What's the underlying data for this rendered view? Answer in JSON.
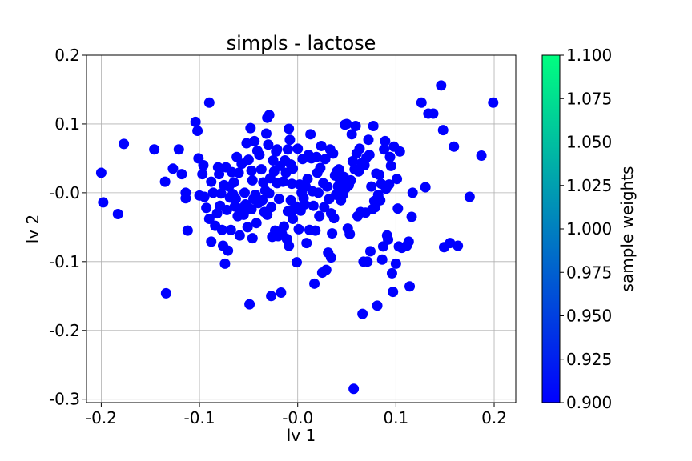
{
  "chart_data": {
    "type": "scatter",
    "title": "simpls - lactose",
    "xlabel": "lv 1",
    "ylabel": "lv 2",
    "xlim": [
      -0.215,
      0.222
    ],
    "ylim": [
      -0.305,
      0.2
    ],
    "x_ticks": [
      -0.2,
      -0.1,
      0.0,
      0.1,
      0.2
    ],
    "x_tick_labels": [
      "-0.2",
      "-0.1",
      "-0.0",
      "0.1",
      "0.2"
    ],
    "y_ticks": [
      0.2,
      0.1,
      0.0,
      -0.1,
      -0.2,
      -0.3
    ],
    "y_tick_labels": [
      "0.2",
      "0.1",
      "-0.0",
      "-0.1",
      "-0.2",
      "-0.3"
    ],
    "grid": true,
    "marker_color": "#0000ff",
    "colorbar": {
      "label": "sample weights",
      "range": [
        0.9,
        1.1
      ],
      "color_low": "#0000ff",
      "color_high": "#00ff80",
      "ticks": [
        0.9,
        0.925,
        0.95,
        0.975,
        1.0,
        1.025,
        1.05,
        1.075,
        1.1
      ],
      "tick_labels": [
        "0.900",
        "0.925",
        "0.950",
        "0.975",
        "1.000",
        "1.025",
        "1.050",
        "1.075",
        "1.100"
      ]
    },
    "points": [
      [
        -0.2,
        0.029
      ],
      [
        -0.198,
        -0.014
      ],
      [
        -0.183,
        -0.031
      ],
      [
        -0.177,
        0.071
      ],
      [
        -0.146,
        0.063
      ],
      [
        -0.135,
        0.016
      ],
      [
        -0.134,
        -0.146
      ],
      [
        -0.127,
        0.035
      ],
      [
        -0.121,
        0.063
      ],
      [
        -0.118,
        0.027
      ],
      [
        -0.114,
        0.0
      ],
      [
        -0.114,
        -0.008
      ],
      [
        -0.112,
        -0.055
      ],
      [
        -0.104,
        0.103
      ],
      [
        -0.102,
        0.09
      ],
      [
        -0.101,
        0.05
      ],
      [
        -0.1,
        -0.004
      ],
      [
        -0.097,
        0.027
      ],
      [
        -0.096,
        0.04
      ],
      [
        -0.095,
        -0.006
      ],
      [
        -0.093,
        -0.022
      ],
      [
        -0.09,
        0.131
      ],
      [
        -0.09,
        -0.038
      ],
      [
        -0.088,
        0.016
      ],
      [
        -0.088,
        -0.071
      ],
      [
        -0.086,
        0.0
      ],
      [
        -0.084,
        -0.048
      ],
      [
        -0.082,
        -0.03
      ],
      [
        -0.081,
        0.037
      ],
      [
        -0.08,
        0.027
      ],
      [
        -0.079,
        -0.019
      ],
      [
        -0.078,
        -0.001
      ],
      [
        -0.077,
        -0.054
      ],
      [
        -0.076,
        -0.077
      ],
      [
        -0.075,
        0.011
      ],
      [
        -0.074,
        -0.103
      ],
      [
        -0.073,
        0.037
      ],
      [
        -0.072,
        -0.025
      ],
      [
        -0.071,
        -0.084
      ],
      [
        -0.07,
        0.009
      ],
      [
        -0.069,
        -0.007
      ],
      [
        -0.068,
        -0.054
      ],
      [
        -0.067,
        0.03
      ],
      [
        -0.066,
        -0.002
      ],
      [
        -0.065,
        0.015
      ],
      [
        -0.064,
        -0.02
      ],
      [
        -0.063,
        -0.009
      ],
      [
        -0.062,
        0.052
      ],
      [
        -0.061,
        -0.034
      ],
      [
        -0.06,
        0.029
      ],
      [
        -0.059,
        -0.062
      ],
      [
        -0.058,
        -0.023
      ],
      [
        -0.057,
        0.042
      ],
      [
        -0.056,
        -0.028
      ],
      [
        -0.055,
        -0.032
      ],
      [
        -0.054,
        0.0
      ],
      [
        -0.053,
        -0.017
      ],
      [
        -0.052,
        0.072
      ],
      [
        -0.051,
        -0.05
      ],
      [
        -0.05,
        0.048
      ],
      [
        -0.049,
        -0.162
      ],
      [
        -0.048,
        0.094
      ],
      [
        -0.047,
        0.032
      ],
      [
        -0.047,
        -0.024
      ],
      [
        -0.046,
        0.018
      ],
      [
        -0.046,
        -0.066
      ],
      [
        -0.045,
        -0.009
      ],
      [
        -0.044,
        0.075
      ],
      [
        -0.043,
        -0.003
      ],
      [
        -0.042,
        -0.044
      ],
      [
        -0.041,
        0.061
      ],
      [
        -0.04,
        -0.015
      ],
      [
        -0.039,
        0.055
      ],
      [
        -0.037,
        0.034
      ],
      [
        -0.036,
        -0.011
      ],
      [
        -0.035,
        0.015
      ],
      [
        -0.034,
        -0.028
      ],
      [
        -0.033,
        0.003
      ],
      [
        -0.032,
        0.086
      ],
      [
        -0.031,
        -0.032
      ],
      [
        -0.031,
        0.109
      ],
      [
        -0.03,
        0.07
      ],
      [
        -0.029,
        0.113
      ],
      [
        -0.029,
        -0.001
      ],
      [
        -0.028,
        0.021
      ],
      [
        -0.027,
        -0.15
      ],
      [
        -0.027,
        -0.021
      ],
      [
        -0.026,
        -0.064
      ],
      [
        -0.025,
        0.047
      ],
      [
        -0.024,
        0.031
      ],
      [
        -0.023,
        -0.055
      ],
      [
        -0.022,
        0.06
      ],
      [
        -0.021,
        0.063
      ],
      [
        -0.021,
        0.014
      ],
      [
        -0.02,
        -0.063
      ],
      [
        -0.019,
        -0.009
      ],
      [
        -0.018,
        0.039
      ],
      [
        -0.017,
        -0.145
      ],
      [
        -0.016,
        -0.06
      ],
      [
        -0.015,
        0.016
      ],
      [
        -0.014,
        -0.049
      ],
      [
        -0.013,
        0.047
      ],
      [
        -0.012,
        0.029
      ],
      [
        -0.011,
        -0.067
      ],
      [
        -0.01,
        -0.027
      ],
      [
        -0.01,
        0.063
      ],
      [
        -0.009,
        0.093
      ],
      [
        -0.009,
        -0.077
      ],
      [
        -0.008,
        0.077
      ],
      [
        -0.007,
        0.041
      ],
      [
        -0.007,
        -0.011
      ],
      [
        -0.006,
        0.013
      ],
      [
        -0.005,
        -0.038
      ],
      [
        -0.005,
        0.035
      ],
      [
        -0.004,
        -0.024
      ],
      [
        -0.002,
        -0.02
      ],
      [
        -0.001,
        -0.101
      ],
      [
        0.0,
        0.064
      ],
      [
        0.001,
        -0.053
      ],
      [
        0.002,
        0.012
      ],
      [
        0.003,
        -0.026
      ],
      [
        0.004,
        0.0
      ],
      [
        0.005,
        0.049
      ],
      [
        0.006,
        -0.008
      ],
      [
        0.007,
        -0.017
      ],
      [
        0.008,
        0.009
      ],
      [
        0.009,
        -0.073
      ],
      [
        0.01,
        0.02
      ],
      [
        0.011,
        0.055
      ],
      [
        0.012,
        -0.054
      ],
      [
        0.013,
        0.085
      ],
      [
        0.014,
        0.05
      ],
      [
        0.015,
        0.002
      ],
      [
        0.016,
        -0.019
      ],
      [
        0.017,
        -0.132
      ],
      [
        0.018,
        -0.055
      ],
      [
        0.019,
        0.052
      ],
      [
        0.02,
        0.029
      ],
      [
        0.021,
        0.0
      ],
      [
        0.022,
        -0.034
      ],
      [
        0.023,
        0.036
      ],
      [
        0.024,
        0.068
      ],
      [
        0.025,
        -0.116
      ],
      [
        0.026,
        0.014
      ],
      [
        0.027,
        -0.021
      ],
      [
        0.028,
        0.049
      ],
      [
        0.029,
        -0.112
      ],
      [
        0.03,
        0.009
      ],
      [
        0.031,
        -0.087
      ],
      [
        0.032,
        -0.009
      ],
      [
        0.033,
        0.063
      ],
      [
        0.034,
        -0.03
      ],
      [
        0.034,
        -0.094
      ],
      [
        0.035,
        -0.059
      ],
      [
        0.036,
        0.057
      ],
      [
        0.037,
        -0.037
      ],
      [
        0.038,
        0.025
      ],
      [
        0.039,
        -0.003
      ],
      [
        0.04,
        0.031
      ],
      [
        0.041,
        0.009
      ],
      [
        0.042,
        0.034
      ],
      [
        0.043,
        0.019
      ],
      [
        0.044,
        -0.011
      ],
      [
        0.045,
        0.017
      ],
      [
        0.046,
        -0.003
      ],
      [
        0.047,
        0.023
      ],
      [
        0.048,
        0.099
      ],
      [
        0.049,
        0.007
      ],
      [
        0.05,
        0.1
      ],
      [
        0.051,
        -0.052
      ],
      [
        0.052,
        0.011
      ],
      [
        0.053,
        -0.06
      ],
      [
        0.054,
        0.018
      ],
      [
        0.055,
        0.085
      ],
      [
        0.056,
        0.046
      ],
      [
        0.057,
        -0.285
      ],
      [
        0.058,
        0.034
      ],
      [
        0.059,
        0.097
      ],
      [
        0.06,
        0.057
      ],
      [
        0.061,
        -0.034
      ],
      [
        0.062,
        0.031
      ],
      [
        0.063,
        0.064
      ],
      [
        0.064,
        -0.028
      ],
      [
        0.065,
        0.043
      ],
      [
        0.066,
        -0.176
      ],
      [
        0.067,
        -0.1
      ],
      [
        0.068,
        0.04
      ],
      [
        0.069,
        -0.029
      ],
      [
        0.07,
        0.051
      ],
      [
        0.071,
        -0.1
      ],
      [
        0.072,
        0.077
      ],
      [
        0.073,
        0.055
      ],
      [
        0.074,
        -0.085
      ],
      [
        0.075,
        0.009
      ],
      [
        0.076,
        -0.024
      ],
      [
        0.077,
        0.097
      ],
      [
        0.078,
        -0.012
      ],
      [
        0.079,
        -0.021
      ],
      [
        0.08,
        0.028
      ],
      [
        0.081,
        -0.164
      ],
      [
        0.082,
        -0.003
      ],
      [
        0.083,
        0.026
      ],
      [
        0.084,
        -0.011
      ],
      [
        0.085,
        0.013
      ],
      [
        0.086,
        -0.097
      ],
      [
        0.087,
        -0.078
      ],
      [
        0.088,
        0.063
      ],
      [
        0.089,
        0.075
      ],
      [
        0.09,
        0.006
      ],
      [
        0.091,
        -0.062
      ],
      [
        0.092,
        -0.068
      ],
      [
        0.093,
        0.012
      ],
      [
        0.094,
        0.052
      ],
      [
        0.095,
        0.039
      ],
      [
        0.096,
        -0.117
      ],
      [
        0.097,
        -0.144
      ],
      [
        0.098,
        0.067
      ],
      [
        0.1,
        -0.103
      ],
      [
        0.101,
        0.02
      ],
      [
        0.102,
        -0.023
      ],
      [
        0.103,
        -0.078
      ],
      [
        0.104,
        0.06
      ],
      [
        0.106,
        -0.08
      ],
      [
        0.111,
        -0.077
      ],
      [
        0.113,
        -0.071
      ],
      [
        0.114,
        -0.136
      ],
      [
        0.116,
        -0.035
      ],
      [
        0.117,
        0.0
      ],
      [
        0.126,
        0.131
      ],
      [
        0.13,
        0.008
      ],
      [
        0.133,
        0.115
      ],
      [
        0.138,
        0.115
      ],
      [
        0.146,
        0.156
      ],
      [
        0.148,
        0.091
      ],
      [
        0.149,
        -0.079
      ],
      [
        0.155,
        -0.073
      ],
      [
        0.159,
        0.067
      ],
      [
        0.163,
        -0.077
      ],
      [
        0.175,
        -0.006
      ],
      [
        0.187,
        0.054
      ],
      [
        0.199,
        0.131
      ]
    ]
  }
}
